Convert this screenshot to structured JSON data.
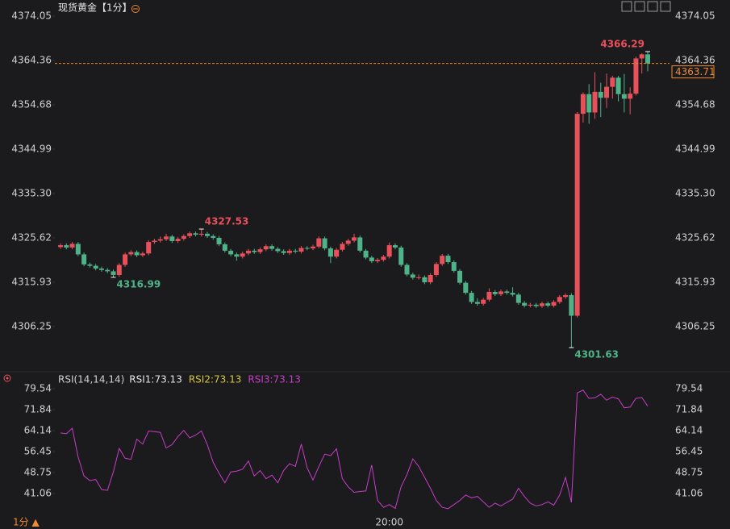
{
  "header": {
    "title": "现货黄金【1分】"
  },
  "footer": {
    "period": "1分 ▲"
  },
  "chart_data": [
    {
      "type": "candlestick",
      "categories": [
        null,
        null,
        null,
        null,
        null,
        null,
        null,
        null,
        null,
        null,
        null,
        null,
        null,
        null,
        null,
        null,
        null,
        null,
        null,
        null,
        null,
        null,
        null,
        null,
        null,
        null,
        null,
        null,
        null,
        null,
        null,
        null,
        null,
        null,
        null,
        null,
        null,
        null,
        null,
        null,
        null,
        null,
        null,
        null,
        null,
        null,
        null,
        null,
        null,
        null,
        null,
        null,
        null,
        null,
        null,
        null,
        "20:00",
        null,
        null,
        null,
        null,
        null,
        null,
        null,
        null,
        null,
        null,
        null,
        null,
        null,
        null,
        null,
        null,
        null,
        null,
        null,
        null,
        null,
        null,
        null,
        null,
        null,
        null,
        null,
        null,
        null,
        null,
        null,
        null,
        null,
        null,
        null,
        null,
        null,
        null,
        null,
        null,
        null,
        null,
        null,
        null
      ],
      "open": [
        4323.6,
        4324.0,
        4323.5,
        4324.3,
        4322.0,
        4319.8,
        4319.5,
        4318.9,
        4318.6,
        4318.3,
        4317.5,
        4319.7,
        4322.0,
        4322.5,
        4321.8,
        4322.2,
        4324.7,
        4325.0,
        4325.3,
        4325.9,
        4324.9,
        4325.4,
        4326.0,
        4326.6,
        4326.3,
        4326.5,
        4326.0,
        4325.6,
        4324.2,
        4322.8,
        4322.0,
        4321.5,
        4322.2,
        4322.8,
        4322.5,
        4323.1,
        4323.8,
        4323.2,
        4322.7,
        4322.3,
        4322.8,
        4322.6,
        4323.4,
        4323.3,
        4323.7,
        4325.5,
        4323.3,
        4321.5,
        4323.0,
        4324.3,
        4325.0,
        4325.7,
        4322.8,
        4321.3,
        4320.5,
        4320.8,
        4321.5,
        4324.0,
        4323.5,
        4319.7,
        4317.6,
        4316.9,
        4317.0,
        4315.9,
        4317.5,
        4319.9,
        4321.7,
        4320.3,
        4318.4,
        4315.8,
        4313.6,
        4311.6,
        4311.2,
        4312.1,
        4313.8,
        4313.3,
        4313.9,
        4313.6,
        4313.2,
        4311.4,
        4310.8,
        4311.0,
        4310.7,
        4311.3,
        4310.8,
        4311.6,
        4312.7,
        4313.1,
        4308.6,
        4352.7,
        4357.0,
        4353.0,
        4357.5,
        4356.2,
        4358.6,
        4360.6,
        4357.0,
        4356.0,
        4357.1,
        4364.8,
        4365.7
      ],
      "high": [
        4324.4,
        4324.4,
        4324.7,
        4324.7,
        4322.4,
        4320.2,
        4319.9,
        4319.3,
        4319.0,
        4318.7,
        4320.1,
        4322.4,
        4322.9,
        4322.9,
        4322.6,
        4325.1,
        4325.4,
        4325.9,
        4326.5,
        4326.3,
        4325.8,
        4326.4,
        4327.0,
        4327.0,
        4327.53,
        4326.9,
        4326.4,
        4326.0,
        4324.6,
        4323.2,
        4322.4,
        4322.6,
        4323.2,
        4323.2,
        4323.5,
        4324.2,
        4324.2,
        4323.6,
        4323.1,
        4323.2,
        4323.2,
        4323.8,
        4323.8,
        4324.1,
        4325.9,
        4325.9,
        4323.7,
        4323.4,
        4324.7,
        4325.4,
        4326.5,
        4326.1,
        4323.2,
        4321.7,
        4321.2,
        4321.9,
        4324.6,
        4324.4,
        4323.9,
        4320.1,
        4318.0,
        4317.6,
        4317.4,
        4317.9,
        4320.3,
        4322.1,
        4322.1,
        4320.7,
        4318.8,
        4316.2,
        4314.0,
        4312.4,
        4312.5,
        4314.6,
        4314.2,
        4314.3,
        4314.3,
        4314.8,
        4313.6,
        4311.8,
        4311.4,
        4311.4,
        4311.7,
        4311.7,
        4312.0,
        4313.1,
        4313.5,
        4313.5,
        4353.1,
        4357.4,
        4359.2,
        4361.8,
        4359.5,
        4361.5,
        4361.0,
        4361.0,
        4361.4,
        4358.5,
        4365.2,
        4365.9,
        4366.29
      ],
      "low": [
        4323.2,
        4323.1,
        4323.1,
        4321.6,
        4319.4,
        4319.1,
        4318.5,
        4318.2,
        4317.9,
        4316.99,
        4317.1,
        4319.3,
        4321.6,
        4321.4,
        4321.4,
        4321.8,
        4324.3,
        4324.6,
        4324.9,
        4324.5,
        4324.5,
        4325.0,
        4325.6,
        4325.9,
        4325.9,
        4325.6,
        4325.2,
        4323.8,
        4322.4,
        4321.6,
        4320.6,
        4321.1,
        4321.8,
        4322.1,
        4322.1,
        4322.7,
        4322.8,
        4322.3,
        4321.9,
        4321.9,
        4322.2,
        4322.2,
        4322.9,
        4322.9,
        4323.3,
        4322.9,
        4320.1,
        4321.1,
        4322.6,
        4323.9,
        4324.6,
        4322.4,
        4320.9,
        4320.1,
        4320.1,
        4320.4,
        4321.1,
        4323.1,
        4319.3,
        4317.2,
        4316.5,
        4316.5,
        4315.5,
        4315.5,
        4317.1,
        4319.5,
        4319.9,
        4318.0,
        4315.4,
        4313.2,
        4311.2,
        4310.8,
        4310.8,
        4311.7,
        4312.9,
        4312.9,
        4313.2,
        4312.8,
        4311.0,
        4310.4,
        4310.4,
        4310.3,
        4310.3,
        4310.4,
        4310.4,
        4311.2,
        4312.3,
        4301.63,
        4308.2,
        4350.8,
        4350.5,
        4351.6,
        4352.0,
        4354.0,
        4356.0,
        4355.4,
        4353.0,
        4352.6,
        4356.7,
        4361.5,
        4362.0
      ],
      "close": [
        4324.0,
        4323.5,
        4324.3,
        4322.0,
        4319.8,
        4319.5,
        4318.9,
        4318.6,
        4318.3,
        4317.5,
        4319.7,
        4322.0,
        4322.5,
        4321.8,
        4322.2,
        4324.7,
        4325.0,
        4325.3,
        4325.9,
        4324.9,
        4325.4,
        4326.0,
        4326.6,
        4326.3,
        4326.5,
        4326.0,
        4325.6,
        4324.2,
        4322.8,
        4322.0,
        4321.5,
        4322.2,
        4322.8,
        4322.5,
        4323.1,
        4323.8,
        4323.2,
        4322.7,
        4322.3,
        4322.8,
        4322.6,
        4323.4,
        4323.3,
        4323.7,
        4325.5,
        4323.3,
        4321.5,
        4323.0,
        4324.3,
        4325.0,
        4325.7,
        4322.8,
        4321.3,
        4320.5,
        4320.8,
        4321.5,
        4324.0,
        4323.5,
        4319.7,
        4317.6,
        4316.9,
        4317.0,
        4315.9,
        4317.5,
        4319.9,
        4321.7,
        4320.3,
        4318.4,
        4315.8,
        4313.6,
        4311.6,
        4311.2,
        4312.1,
        4313.8,
        4313.3,
        4313.9,
        4313.6,
        4313.2,
        4311.4,
        4310.8,
        4311.0,
        4310.7,
        4311.3,
        4310.8,
        4311.6,
        4312.7,
        4313.1,
        4308.6,
        4352.7,
        4357.0,
        4353.0,
        4357.5,
        4356.2,
        4358.6,
        4360.6,
        4357.0,
        4356.0,
        4357.1,
        4364.8,
        4365.7,
        4363.71
      ],
      "up_color": "#e8505b",
      "down_color": "#4fb38a",
      "price_line_color": "#f08a30",
      "ylim": [
        4299.0,
        4375.8
      ],
      "yticks": [
        4374.05,
        4364.36,
        4354.68,
        4344.99,
        {
          "value": 4335.3,
          "label": "4335.30"
        },
        4325.62,
        4315.93,
        4306.25
      ]
    },
    {
      "type": "line",
      "title": "RSI(14,14,14)",
      "legend": [
        {
          "label": "RSI1:73.13",
          "color": "#e6e6e6"
        },
        {
          "label": "RSI2:73.13",
          "color": "#d8c838"
        },
        {
          "label": "RSI3:73.13",
          "color": "#c83cc8"
        }
      ],
      "series": [
        {
          "color": "#c83cc8",
          "values": [
            63.3,
            63.0,
            65.0,
            54.5,
            47.5,
            45.8,
            46.2,
            42.5,
            42.2,
            49.0,
            57.6,
            54.0,
            53.6,
            61.0,
            59.2,
            64.0,
            63.8,
            63.5,
            57.8,
            59.0,
            62.0,
            64.2,
            61.5,
            62.5,
            64.0,
            59.0,
            52.5,
            48.5,
            45.0,
            49.0,
            49.3,
            50.0,
            53.0,
            47.5,
            49.5,
            46.5,
            47.8,
            45.0,
            49.5,
            52.0,
            51.0,
            59.2,
            50.5,
            46.0,
            51.0,
            55.5,
            55.0,
            57.5,
            46.5,
            43.5,
            41.5,
            41.8,
            42.0,
            51.5,
            38.5,
            36.0,
            37.0,
            35.6,
            43.5,
            48.0,
            53.8,
            51.0,
            47.0,
            43.0,
            38.5,
            36.0,
            35.5,
            37.0,
            38.5,
            40.5,
            39.5,
            40.0,
            38.0,
            36.0,
            37.5,
            36.5,
            37.8,
            39.0,
            43.0,
            40.0,
            37.5,
            36.5,
            37.0,
            38.0,
            36.8,
            40.5,
            47.0,
            37.8,
            78.0,
            79.0,
            76.0,
            76.2,
            77.5,
            75.3,
            76.5,
            75.8,
            72.5,
            72.8,
            76.0,
            76.3,
            73.13
          ]
        }
      ],
      "ylim": [
        32,
        82
      ],
      "yticks": [
        79.54,
        71.84,
        64.14,
        56.45,
        48.75,
        41.06
      ]
    }
  ]
}
